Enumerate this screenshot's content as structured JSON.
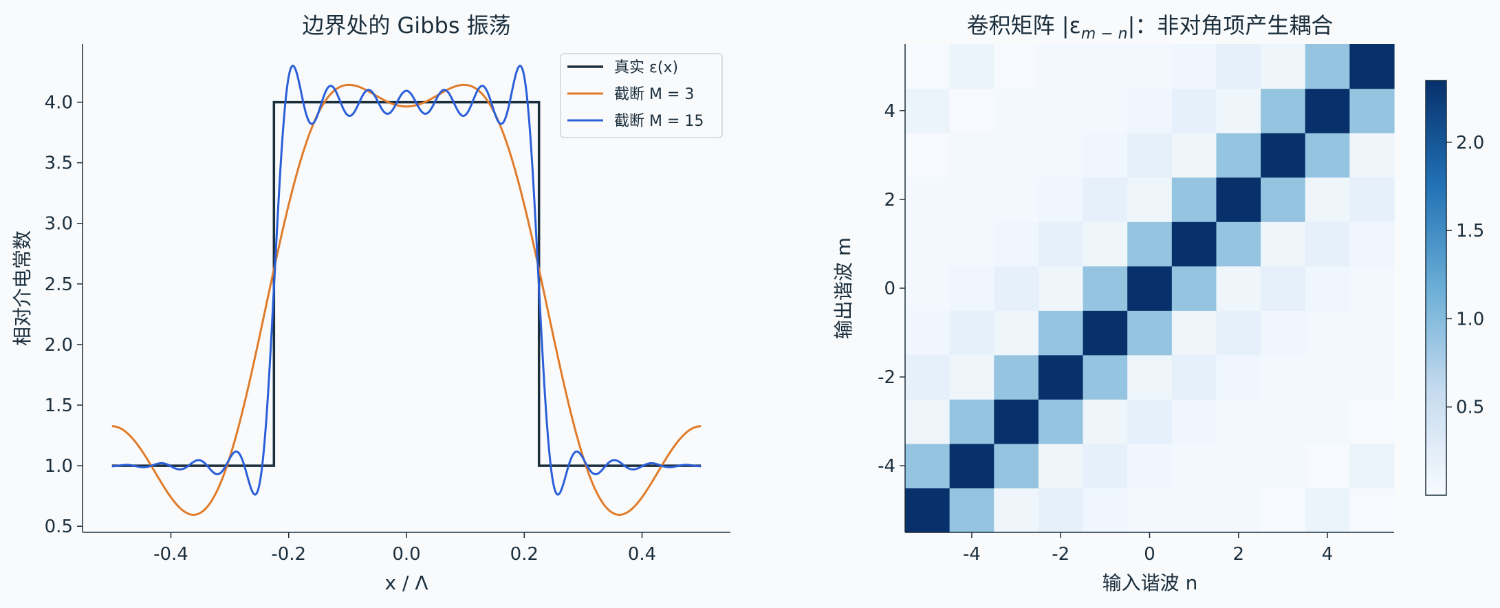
{
  "chart_data": [
    {
      "type": "line",
      "title": "边界处的 Gibbs 振荡",
      "xlabel": "x / Λ",
      "ylabel": "相对介电常数",
      "xlim": [
        -0.55,
        0.55
      ],
      "ylim": [
        0.45,
        4.48
      ],
      "xticks": [
        -0.4,
        -0.2,
        0.0,
        0.2,
        0.4
      ],
      "xtick_labels": [
        "-0.4",
        "-0.2",
        "0.0",
        "0.2",
        "0.4"
      ],
      "yticks": [
        0.5,
        1.0,
        1.5,
        2.0,
        2.5,
        3.0,
        3.5,
        4.0
      ],
      "ytick_labels": [
        "0.5",
        "1.0",
        "1.5",
        "2.0",
        "2.5",
        "3.0",
        "3.5",
        "4.0"
      ],
      "grid": false,
      "legend_position": "top-right",
      "fill_factor": 0.45,
      "eps_low": 1.0,
      "eps_high": 4.0,
      "series": [
        {
          "name": "真实 ε(x)",
          "color": "#1b2e3c",
          "kind": "true",
          "x": [
            -0.5,
            -0.225,
            -0.225,
            0.225,
            0.225,
            0.5
          ],
          "y": [
            1.0,
            1.0,
            4.0,
            4.0,
            1.0,
            1.0
          ]
        },
        {
          "name": "截断 M = 3",
          "color": "#e07b29",
          "kind": "fourier",
          "M": 3
        },
        {
          "name": "截断 M = 15",
          "color": "#2a5fd8",
          "kind": "fourier",
          "M": 15
        }
      ]
    },
    {
      "type": "heatmap",
      "title": "卷积矩阵 |ε",
      "title_sub": "m − n",
      "title_suffix": "|：非对角项产生耦合",
      "xlabel": "输入谐波 n",
      "ylabel": "输出谐波 m",
      "harmonics": [
        -5,
        -4,
        -3,
        -2,
        -1,
        0,
        1,
        2,
        3,
        4,
        5
      ],
      "xticks": [
        -4,
        -2,
        0,
        2,
        4
      ],
      "xtick_labels": [
        "-4",
        "-2",
        "0",
        "2",
        "4"
      ],
      "yticks": [
        -4,
        -2,
        0,
        2,
        4
      ],
      "ytick_labels": [
        "-4",
        "-2",
        "0",
        "2",
        "4"
      ],
      "colormap": "Blues",
      "vmin": 0.0,
      "vmax": 2.35,
      "coefficient_magnitude_by_offset": {
        "0": 2.35,
        "1": 0.94,
        "2": 0.1,
        "3": 0.2,
        "4": 0.09,
        "5": 0.05,
        "6": 0.06,
        "7": 0.06,
        "8": 0.01,
        "9": 0.14,
        "10": 0.01
      },
      "colorbar": {
        "ticks": [
          0.5,
          1.0,
          1.5,
          2.0
        ],
        "tick_labels": [
          "0.5",
          "1.0",
          "1.5",
          "2.0"
        ]
      }
    }
  ]
}
